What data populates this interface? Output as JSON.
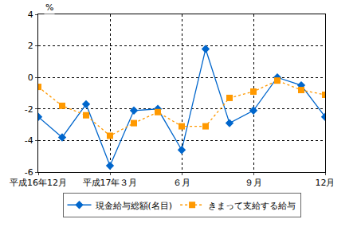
{
  "chart_data": {
    "type": "line",
    "ylabel": "%",
    "categories": [
      "平成16年12月",
      null,
      null,
      "平成17年３月",
      null,
      null,
      "６月",
      null,
      null,
      "９月",
      null,
      null,
      "12月"
    ],
    "series": [
      {
        "name": "現金給与総額(名目)",
        "color": "#0066cc",
        "marker": "diamond",
        "line_style": "solid",
        "values": [
          -2.5,
          -3.8,
          -1.7,
          -5.6,
          -2.1,
          -2.0,
          -4.6,
          1.8,
          -2.9,
          -2.1,
          0.0,
          -0.5,
          -2.5
        ]
      },
      {
        "name": "きまって支給する給与",
        "color": "#ff9900",
        "marker": "square",
        "line_style": "dot",
        "values": [
          -0.6,
          -1.8,
          -2.4,
          -3.7,
          -2.9,
          -2.2,
          -3.1,
          -3.1,
          -1.3,
          -0.9,
          -0.2,
          -0.8,
          -1.1
        ]
      }
    ],
    "ylim": [
      -6,
      4
    ],
    "yticks": [
      -6,
      -4,
      -2,
      0,
      2,
      4
    ],
    "grid": true,
    "legend": "bottom"
  }
}
